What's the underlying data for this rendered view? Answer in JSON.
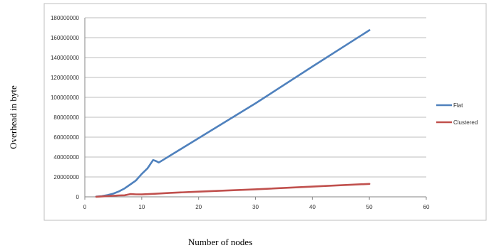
{
  "chart_data": {
    "type": "line",
    "title": "",
    "xlabel": "Number of nodes",
    "ylabel": "Overhead in byte",
    "xlim": [
      0,
      60
    ],
    "ylim": [
      0,
      180000000
    ],
    "x_ticks": [
      "0",
      "10",
      "20",
      "30",
      "40",
      "50",
      "60"
    ],
    "y_ticks": [
      "0",
      "20000000",
      "40000000",
      "60000000",
      "80000000",
      "100000000",
      "120000000",
      "140000000",
      "160000000",
      "180000000"
    ],
    "grid": "horizontal",
    "legend_position": "right",
    "series": [
      {
        "name": "Flat",
        "color": "#4f81bd",
        "points": [
          [
            2,
            200000
          ],
          [
            3,
            700000
          ],
          [
            4,
            1800000
          ],
          [
            5,
            3200000
          ],
          [
            6,
            5500000
          ],
          [
            7,
            8500000
          ],
          [
            8,
            12500000
          ],
          [
            9,
            16500000
          ],
          [
            10,
            23000000
          ],
          [
            11,
            28500000
          ],
          [
            12,
            37000000
          ],
          [
            12.5,
            36000000
          ],
          [
            13,
            34500000
          ],
          [
            14,
            38000000
          ],
          [
            15,
            41500000
          ],
          [
            20,
            59000000
          ],
          [
            30,
            94000000
          ],
          [
            40,
            131000000
          ],
          [
            50,
            167500000
          ]
        ]
      },
      {
        "name": "Clustered",
        "color": "#c0504d",
        "points": [
          [
            2,
            100000
          ],
          [
            4,
            800000
          ],
          [
            6,
            1400000
          ],
          [
            7,
            1600000
          ],
          [
            8,
            2800000
          ],
          [
            9,
            2500000
          ],
          [
            10,
            2400000
          ],
          [
            12,
            3000000
          ],
          [
            15,
            4000000
          ],
          [
            20,
            5200000
          ],
          [
            30,
            7600000
          ],
          [
            40,
            10300000
          ],
          [
            50,
            13000000
          ]
        ]
      }
    ]
  }
}
